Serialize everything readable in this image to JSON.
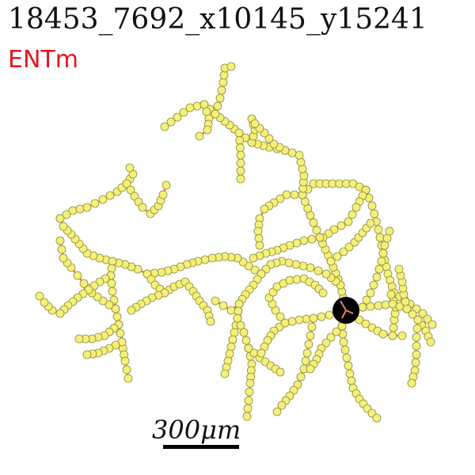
{
  "title": "18453_7692_x10145_y15241",
  "subtitle": "ENTm",
  "scale_label": "300μm",
  "colors": {
    "edge": "#f07a6a",
    "node_fill": "#f5f07a",
    "node_stroke": "#8a8a3a",
    "soma": "#000000",
    "title_text": "#111111",
    "subtitle_text": "#e8141c"
  }
}
